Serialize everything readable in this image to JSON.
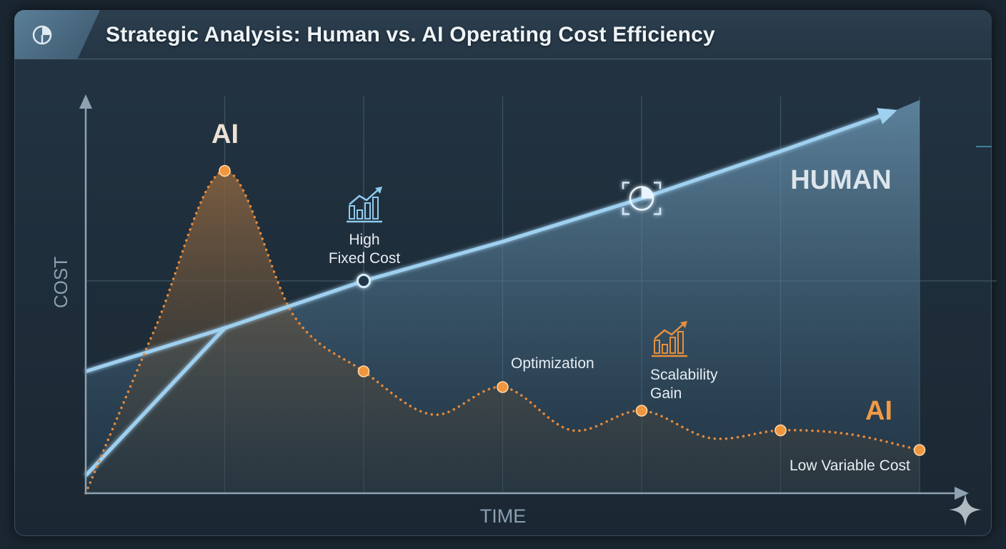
{
  "title": "Strategic Analysis: Human vs. AI Operating Cost Efficiency",
  "chart_data": {
    "type": "line",
    "xlabel": "TIME",
    "ylabel": "COST",
    "x": [
      0,
      1,
      2,
      3,
      4,
      5,
      6
    ],
    "xlim": [
      0,
      6
    ],
    "ylim": [
      0,
      10
    ],
    "grid": true,
    "series": [
      {
        "name": "HUMAN",
        "color": "#9fd0f0",
        "points": [
          [
            0,
            0.45
          ],
          [
            1,
            4.2
          ],
          [
            2,
            5.4
          ],
          [
            3,
            6.4
          ],
          [
            4,
            7.5
          ],
          [
            5,
            8.7
          ],
          [
            5.8,
            9.7
          ]
        ],
        "baseline_points": [
          [
            0,
            3.1
          ],
          [
            1,
            4.2
          ]
        ]
      },
      {
        "name": "AI",
        "color": "#e58a3c",
        "points": [
          [
            0,
            0.0
          ],
          [
            0.5,
            4.2
          ],
          [
            1,
            8.2
          ],
          [
            1.5,
            4.5
          ],
          [
            2,
            3.1
          ],
          [
            2.5,
            2.0
          ],
          [
            3,
            2.7
          ],
          [
            3.5,
            1.6
          ],
          [
            4,
            2.1
          ],
          [
            4.5,
            1.4
          ],
          [
            5,
            1.6
          ],
          [
            5.5,
            1.5
          ],
          [
            6,
            1.1
          ]
        ],
        "marked_points": [
          [
            1,
            8.2
          ],
          [
            2,
            3.1
          ],
          [
            3,
            2.7
          ],
          [
            4,
            2.1
          ],
          [
            5,
            1.6
          ],
          [
            6,
            1.1
          ]
        ]
      }
    ],
    "annotations": [
      {
        "text": "AI",
        "role": "ai-peak-label",
        "color": "#ece2d4"
      },
      {
        "text": "HUMAN",
        "role": "human-area-label",
        "color": "#dbe5ec"
      },
      {
        "text": "AI",
        "role": "ai-tail-label",
        "color": "#f29a45"
      },
      {
        "text": "High",
        "role": "high-fixed-cost-line1"
      },
      {
        "text": "Fixed Cost",
        "role": "high-fixed-cost-line2"
      },
      {
        "text": "Optimization",
        "role": "optimization"
      },
      {
        "text": "Scalability",
        "role": "scalability-line1"
      },
      {
        "text": "Gain",
        "role": "scalability-line2"
      },
      {
        "text": "Low Variable Cost",
        "role": "low-variable-cost"
      }
    ]
  },
  "icons": {
    "logo": "pie-chart-icon",
    "growth_blue": "bar-growth-icon",
    "growth_orange": "bar-growth-icon",
    "focus": "target-focus-icon",
    "sparkle": "sparkle-icon"
  },
  "colors": {
    "human_line": "#9fd0f0",
    "ai_line": "#e58a3c",
    "axis": "#8da2b2",
    "grid": "#3e5566"
  }
}
